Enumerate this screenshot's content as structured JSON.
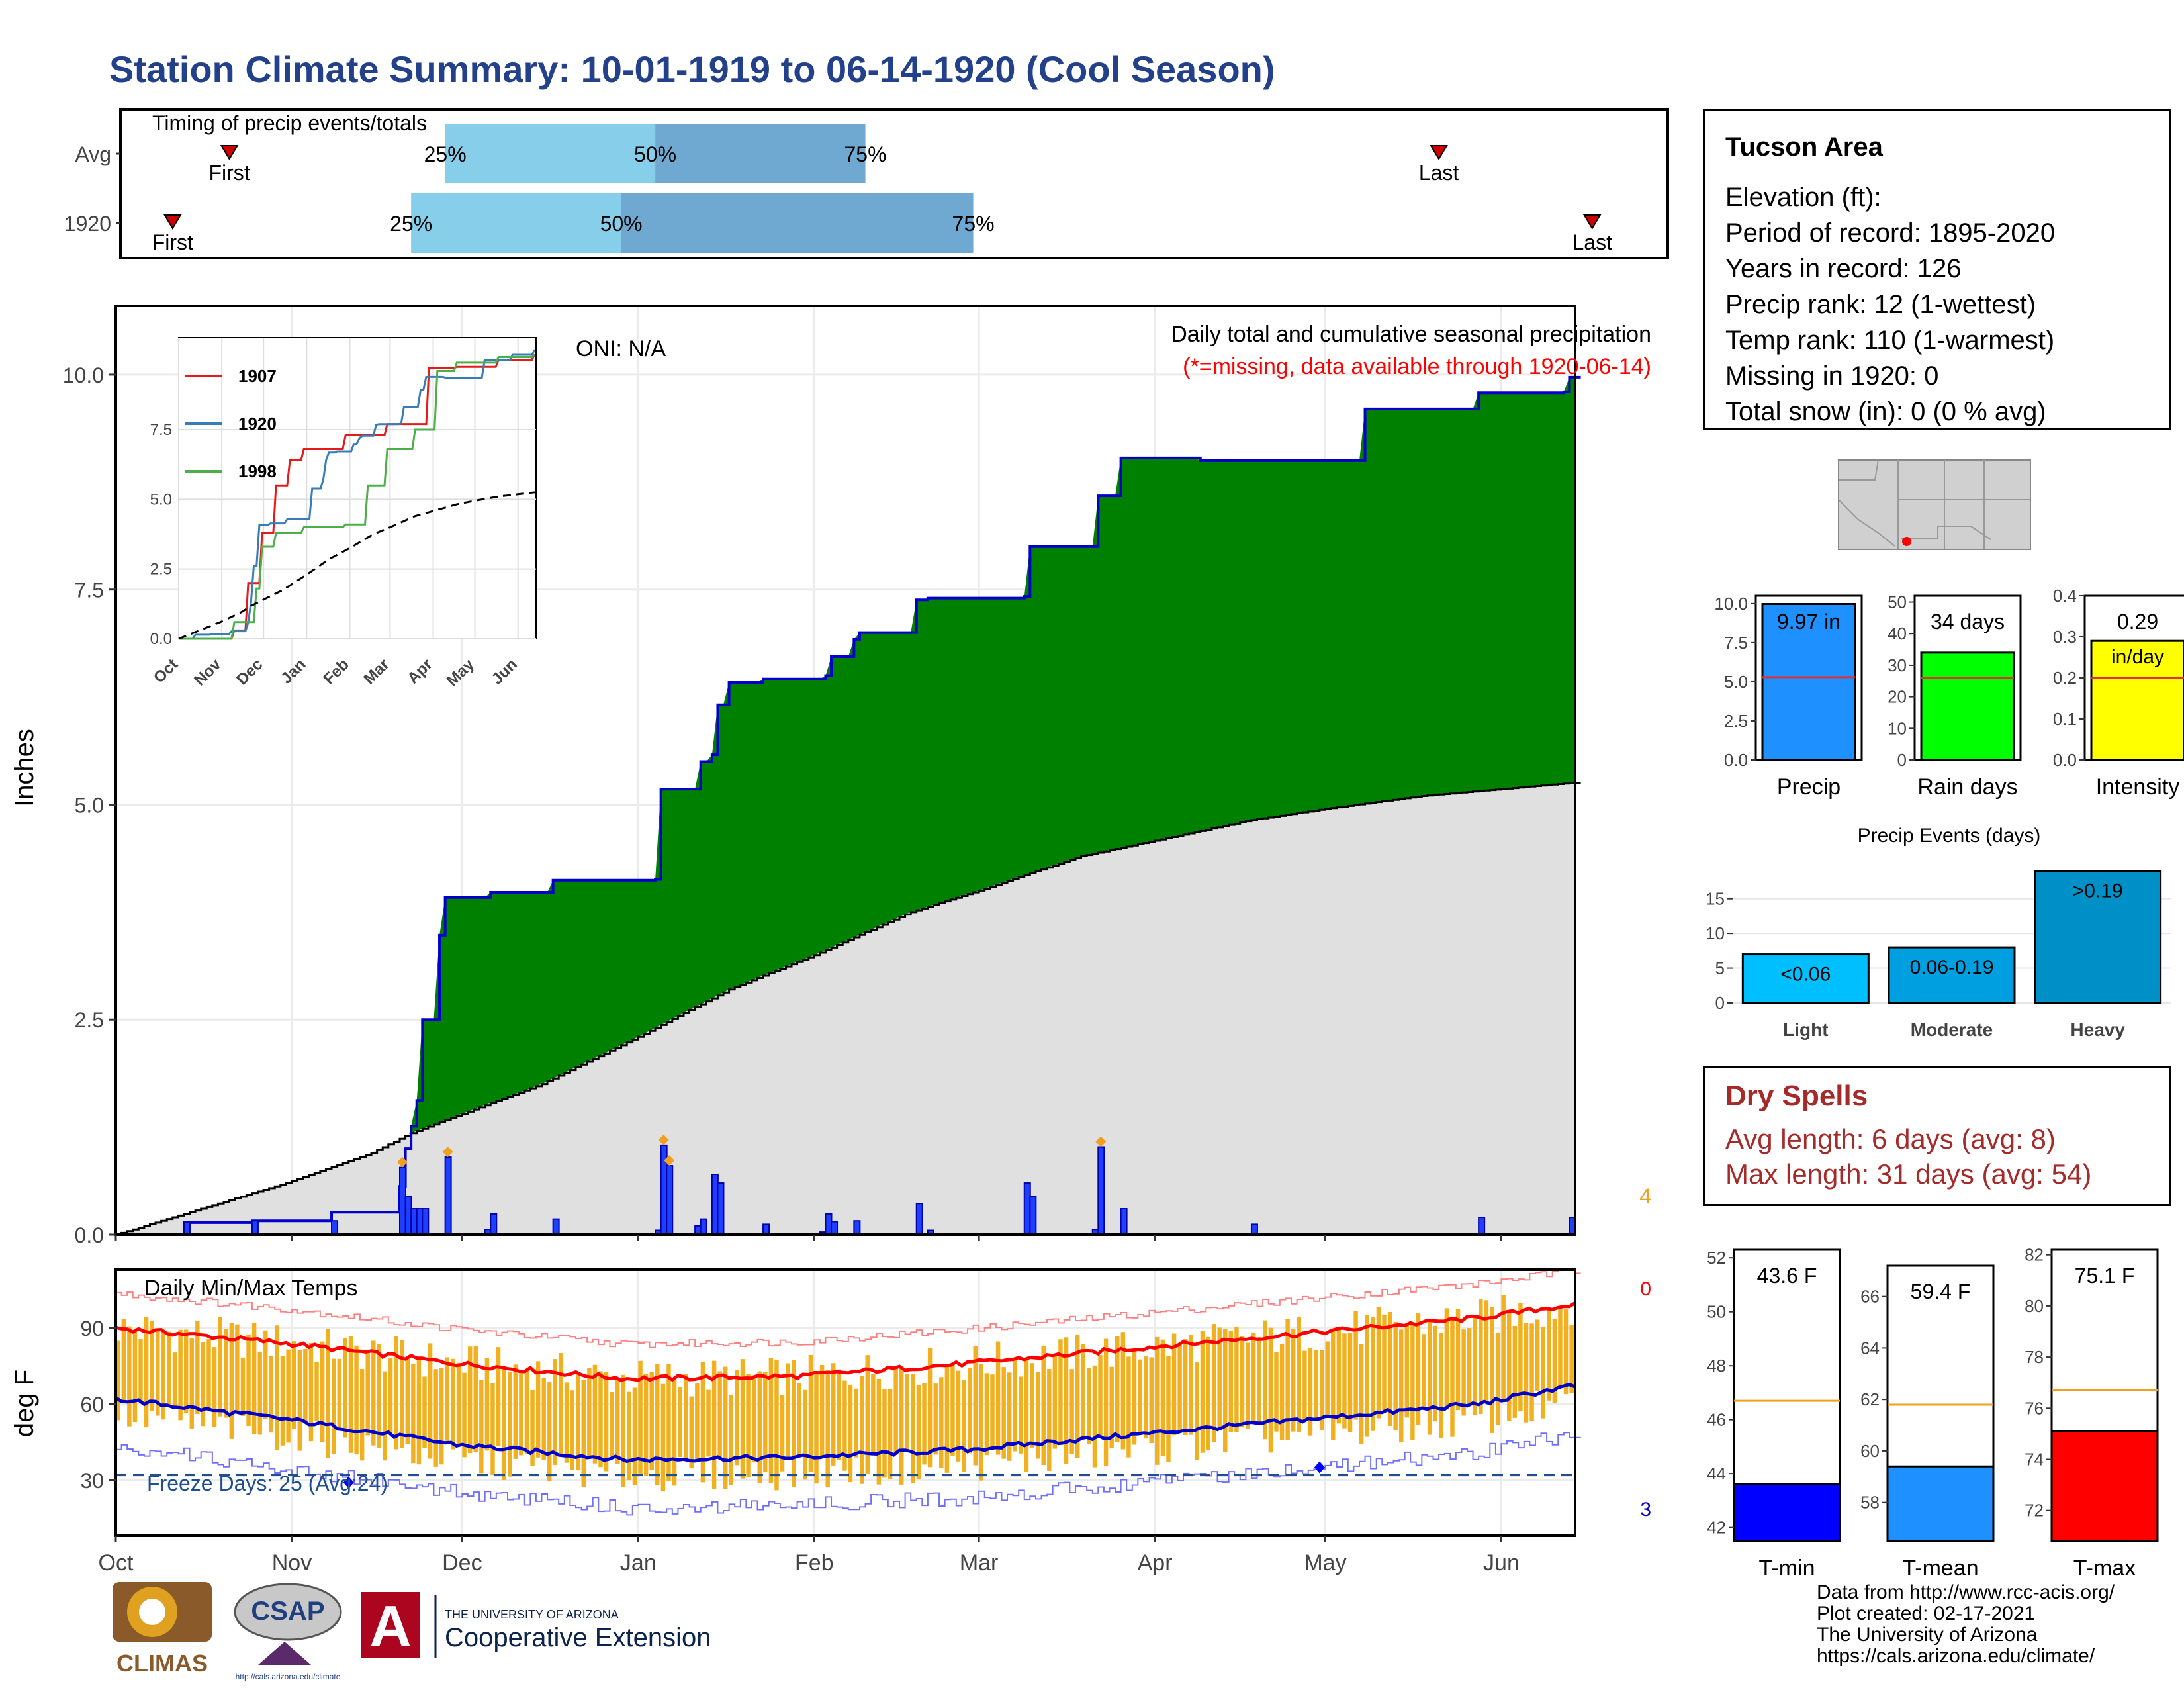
{
  "title": "Station Climate Summary: 10-01-1919 to 06-14-1920 (Cool Season)",
  "timing": {
    "label": "Timing of precip events/totals",
    "rows": [
      {
        "name": "Avg",
        "first": "First",
        "last": "Last",
        "p25": "25%",
        "p50": "50%",
        "p75": "75%",
        "first_day": 20,
        "last_day": 233,
        "p25_day": 58,
        "p50_day": 95,
        "p75_day": 132
      },
      {
        "name": "1920",
        "first": "First",
        "last": "Last",
        "p25": "25%",
        "p50": "50%",
        "p75": "75%",
        "first_day": 10,
        "last_day": 260,
        "p25_day": 52,
        "p50_day": 89,
        "p75_day": 151
      }
    ]
  },
  "main": {
    "oni": "ONI: N/A",
    "subtitle": "Daily total and cumulative seasonal precipitation",
    "missing_note": "(*=missing, data available through 1920-06-14)",
    "ylabel": "Inches",
    "missing_count": "4",
    "colors": {
      "above": "#008000",
      "below": "#8b5a00",
      "normal": "#e0e0e0",
      "line": "#0000cc"
    }
  },
  "temps": {
    "label": "Daily Min/Max Temps",
    "ylabel": "deg F",
    "freeze": "Freeze Days: 25 (Avg:24)",
    "max_missing": "0",
    "min_missing": "3",
    "colors": {
      "bar": "#f0b020",
      "max": "#ff0000",
      "min": "#0000cc"
    }
  },
  "inset": {
    "series": [
      {
        "name": "1907",
        "color": "#e41a1c"
      },
      {
        "name": "1920",
        "color": "#377eb8"
      },
      {
        "name": "1998",
        "color": "#4daf4a"
      }
    ],
    "xticks": [
      "Oct",
      "Nov",
      "Dec",
      "Jan",
      "Feb",
      "Mar",
      "Apr",
      "May",
      "Jun"
    ],
    "yticks": [
      "0.0",
      "2.5",
      "5.0",
      "7.5"
    ]
  },
  "info": {
    "station": "Tucson Area",
    "lines": [
      "Elevation (ft):",
      "Period of record: 1895-2020",
      "Years in record: 126",
      "Precip rank: 12 (1-wettest)",
      "Temp rank: 110 (1-warmest)",
      "Missing in 1920: 0",
      "Total snow (in): 0 (0 % avg)"
    ]
  },
  "mini_bars": [
    {
      "name": "Precip",
      "value": 9.97,
      "label": "9.97 in",
      "avg": 5.3,
      "ymax": 10.5,
      "ticks": [
        "0.0",
        "2.5",
        "5.0",
        "7.5",
        "10.0"
      ],
      "tickvals": [
        0,
        2.5,
        5,
        7.5,
        10
      ],
      "color": "#1e90ff"
    },
    {
      "name": "Rain days",
      "value": 34,
      "label": "34 days",
      "avg": 26,
      "ymax": 52,
      "ticks": [
        "0",
        "10",
        "20",
        "30",
        "40",
        "50"
      ],
      "tickvals": [
        0,
        10,
        20,
        30,
        40,
        50
      ],
      "color": "#00ff00"
    },
    {
      "name": "Intensity",
      "value": 0.29,
      "label": "0.29",
      "unit": "in/day",
      "avg": 0.2,
      "ymax": 0.4,
      "ticks": [
        "0.0",
        "0.1",
        "0.2",
        "0.3",
        "0.4"
      ],
      "tickvals": [
        0,
        0.1,
        0.2,
        0.3,
        0.4
      ],
      "color": "#ffff00"
    }
  ],
  "events": {
    "title": "Precip Events (days)",
    "categories": [
      "Light",
      "Moderate",
      "Heavy"
    ],
    "labels": [
      "<0.06",
      "0.06-0.19",
      ">0.19"
    ],
    "values": [
      7,
      8,
      19
    ],
    "yticks": [
      "0",
      "5",
      "10",
      "15"
    ],
    "colors": [
      "#00bfff",
      "#00a0e0",
      "#0090c8"
    ]
  },
  "dry": {
    "title": "Dry Spells",
    "avg": "Avg length: 6 days (avg: 8)",
    "max": "Max length: 31 days (avg: 54)"
  },
  "temp_bars": [
    {
      "name": "T-min",
      "value": 43.6,
      "label": "43.6 F",
      "avg": 46.7,
      "ymin": 41.5,
      "ymax": 52.3,
      "ticks": [
        "42",
        "44",
        "46",
        "48",
        "50",
        "52"
      ],
      "tickvals": [
        42,
        44,
        46,
        48,
        50,
        52
      ],
      "color": "#0000ff"
    },
    {
      "name": "T-mean",
      "value": 59.4,
      "label": "59.4 F",
      "avg": 61.8,
      "ymin": 56.5,
      "ymax": 67.2,
      "ticks": [
        "58",
        "60",
        "62",
        "64",
        "66"
      ],
      "tickvals": [
        58,
        60,
        62,
        64,
        66
      ],
      "color": "#1e90ff"
    },
    {
      "name": "T-max",
      "value": 75.1,
      "label": "75.1 F",
      "avg": 76.7,
      "ymin": 70.8,
      "ymax": 82.2,
      "ticks": [
        "72",
        "74",
        "76",
        "78",
        "80",
        "82"
      ],
      "tickvals": [
        72,
        74,
        76,
        78,
        80,
        82
      ],
      "color": "#ff0000"
    }
  ],
  "credits": [
    "Data from http://www.rcc-acis.org/",
    "Plot created: 02-17-2021",
    "The University of Arizona",
    "https://cals.arizona.edu/climate/"
  ],
  "logos": {
    "climas": "CLIMAS",
    "csap": "CSAP",
    "csap_url": "http://cals.arizona.edu/climate",
    "ua_line1": "THE UNIVERSITY OF ARIZONA",
    "ua_line2": "Cooperative Extension"
  },
  "chart_data": {
    "type": "area",
    "title": "Daily total and cumulative seasonal precipitation",
    "xlabel": "",
    "ylabel": "Inches",
    "x_ticks": [
      "Oct",
      "Nov",
      "Dec",
      "Jan",
      "Feb",
      "Mar",
      "Apr",
      "May",
      "Jun"
    ],
    "x_tick_days": [
      0,
      31,
      61,
      92,
      123,
      152,
      183,
      213,
      244
    ],
    "ylim": [
      0,
      10.8
    ],
    "y_ticks": [
      0,
      2.5,
      5,
      7.5,
      10
    ],
    "season_days": 257,
    "cumulative_1920": [
      [
        0,
        0
      ],
      [
        12,
        0.14
      ],
      [
        24,
        0.16
      ],
      [
        38,
        0.26
      ],
      [
        50,
        0.56
      ],
      [
        51,
        1.0
      ],
      [
        52,
        1.26
      ],
      [
        53,
        1.56
      ],
      [
        54,
        2.5
      ],
      [
        57,
        3.48
      ],
      [
        58,
        3.92
      ],
      [
        66,
        3.98
      ],
      [
        77,
        4.12
      ],
      [
        95,
        4.13
      ],
      [
        96,
        5.18
      ],
      [
        103,
        5.5
      ],
      [
        105,
        5.58
      ],
      [
        106,
        6.16
      ],
      [
        108,
        6.42
      ],
      [
        114,
        6.46
      ],
      [
        121,
        6.46
      ],
      [
        125,
        6.5
      ],
      [
        126,
        6.72
      ],
      [
        130,
        6.92
      ],
      [
        131,
        7.0
      ],
      [
        141,
        7.38
      ],
      [
        143,
        7.4
      ],
      [
        160,
        7.42
      ],
      [
        161,
        8.0
      ],
      [
        173,
        8.59
      ],
      [
        177,
        9.03
      ],
      [
        191,
        9.0
      ],
      [
        220,
        9.6
      ],
      [
        240,
        9.79
      ],
      [
        255,
        9.8
      ],
      [
        256,
        9.97
      ]
    ],
    "normal_cumulative": [
      [
        0,
        0
      ],
      [
        15,
        0.3
      ],
      [
        30,
        0.6
      ],
      [
        45,
        0.95
      ],
      [
        52,
        1.18
      ],
      [
        60,
        1.38
      ],
      [
        75,
        1.75
      ],
      [
        92,
        2.3
      ],
      [
        108,
        2.85
      ],
      [
        123,
        3.25
      ],
      [
        140,
        3.75
      ],
      [
        152,
        4.0
      ],
      [
        170,
        4.4
      ],
      [
        183,
        4.58
      ],
      [
        200,
        4.82
      ],
      [
        213,
        4.95
      ],
      [
        230,
        5.1
      ],
      [
        244,
        5.18
      ],
      [
        256,
        5.25
      ]
    ],
    "daily_precip": [
      [
        12,
        0.14
      ],
      [
        24,
        0.16
      ],
      [
        38,
        0.16
      ],
      [
        50,
        0.78
      ],
      [
        51,
        0.44
      ],
      [
        52,
        0.3
      ],
      [
        53,
        0.3
      ],
      [
        54,
        0.3
      ],
      [
        58,
        0.9
      ],
      [
        65,
        0.06
      ],
      [
        66,
        0.24
      ],
      [
        77,
        0.18
      ],
      [
        95,
        0.05
      ],
      [
        96,
        1.04
      ],
      [
        97,
        0.8
      ],
      [
        102,
        0.1
      ],
      [
        103,
        0.18
      ],
      [
        105,
        0.7
      ],
      [
        106,
        0.6
      ],
      [
        114,
        0.12
      ],
      [
        124,
        0.03
      ],
      [
        125,
        0.24
      ],
      [
        126,
        0.15
      ],
      [
        130,
        0.16
      ],
      [
        141,
        0.36
      ],
      [
        143,
        0.05
      ],
      [
        160,
        0.6
      ],
      [
        161,
        0.44
      ],
      [
        172,
        0.06
      ],
      [
        173,
        1.02
      ],
      [
        177,
        0.3
      ],
      [
        200,
        0.12
      ],
      [
        240,
        0.2
      ],
      [
        256,
        0.2
      ]
    ],
    "temps_normal_max": [
      [
        0,
        90
      ],
      [
        30,
        84
      ],
      [
        60,
        76
      ],
      [
        90,
        70
      ],
      [
        120,
        71
      ],
      [
        150,
        76
      ],
      [
        180,
        82
      ],
      [
        210,
        88
      ],
      [
        240,
        94
      ],
      [
        256,
        99
      ]
    ],
    "temps_normal_min": [
      [
        0,
        62
      ],
      [
        30,
        54
      ],
      [
        60,
        44
      ],
      [
        90,
        38
      ],
      [
        120,
        39
      ],
      [
        150,
        42
      ],
      [
        180,
        48
      ],
      [
        210,
        54
      ],
      [
        240,
        60
      ],
      [
        256,
        67
      ]
    ]
  }
}
